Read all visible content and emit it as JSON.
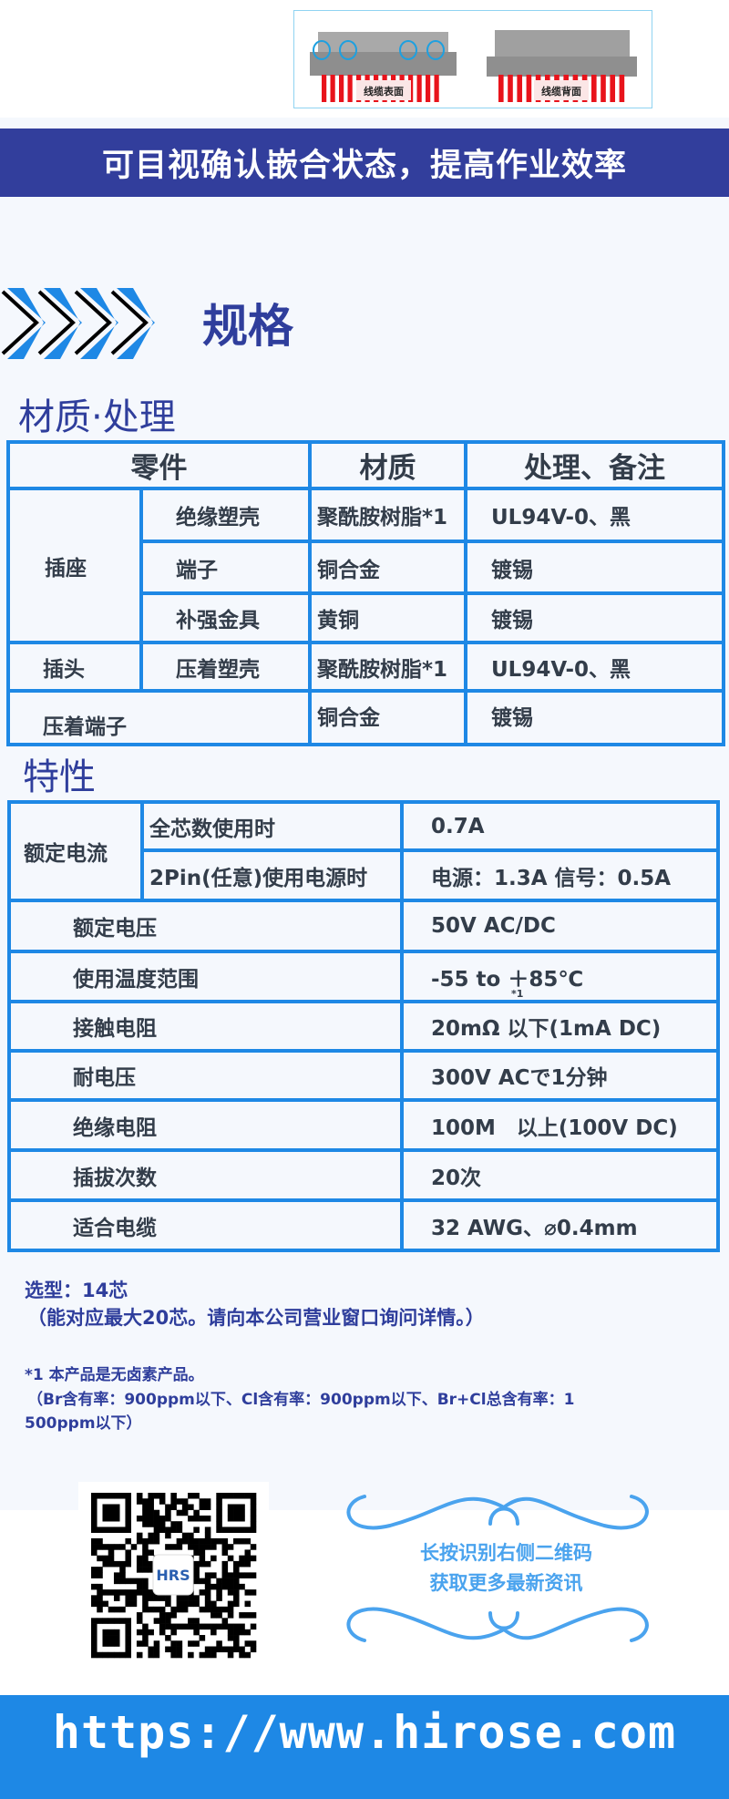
{
  "top_image": {
    "labels": [
      "线缆表面",
      "线缆背面"
    ]
  },
  "banner": "可目视确认嵌合状态，提高作业效率",
  "spec_title": "规格",
  "materials": {
    "title": "材质·处理",
    "headers": [
      "零件",
      "材质",
      "处理、备注"
    ],
    "rows": [
      {
        "group": "插座",
        "part": "绝缘塑壳",
        "material": "聚酰胺树脂*1",
        "note": "UL94V-0、黑"
      },
      {
        "part": "端子",
        "material": "铜合金",
        "note": "镀锡"
      },
      {
        "part": "补强金具",
        "material": "黄铜",
        "note": "镀锡"
      },
      {
        "group": "插头",
        "part": "压着塑壳",
        "material": "聚酰胺树脂*1",
        "note": "UL94V-0、黑"
      },
      {
        "part": "压着端子",
        "material": "铜合金",
        "note": "镀锡"
      }
    ]
  },
  "characteristics": {
    "title": "特性",
    "rated_current": {
      "label": "额定电流",
      "rows": [
        {
          "cond": "全芯数使用时",
          "value": "0.7A"
        },
        {
          "cond": "2Pin(任意)使用电源时",
          "value": "电源：1.3A 信号：0.5A"
        }
      ]
    },
    "rows": [
      {
        "label": "额定电压",
        "value": "50V AC/DC"
      },
      {
        "label": "使用温度范围",
        "value": "-55 to ＋85℃",
        "sup": "*1"
      },
      {
        "label": "接触电阻",
        "value": "20mΩ 以下(1mA DC)"
      },
      {
        "label": "耐电压",
        "value": "300V ACで1分钟"
      },
      {
        "label": "绝缘电阻",
        "value": "100M　以上(100V DC)"
      },
      {
        "label": "插拔次数",
        "value": "20次"
      },
      {
        "label": "适合电缆",
        "value": "32 AWG、⌀0.4mm"
      }
    ]
  },
  "notes": {
    "model": "选型：14芯",
    "model_detail": "（能对应最大20芯。请向本公司营业窗口询问详情。）",
    "footnote1": "*1 本产品是无卤素产品。",
    "footnote2": "（Br含有率：900ppm以下、Cl含有率：900ppm以下、Br+Cl总含有率：1",
    "footnote3": "500ppm以下）"
  },
  "qr": {
    "logo": "HRS",
    "cta1": "长按识别右侧二维码",
    "cta2": "获取更多最新资讯"
  },
  "footer": {
    "url": "https://www.hirose.com"
  },
  "colors": {
    "navy": "#323e9c",
    "blue": "#1e88e5",
    "light_blue": "#4aa3ee"
  }
}
